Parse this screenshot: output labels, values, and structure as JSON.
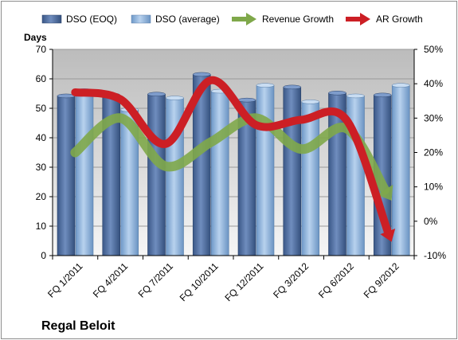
{
  "chart_data": {
    "type": "bar",
    "company": "Regal Beloit",
    "ylabel": "Days",
    "categories": [
      "FQ 1/2011",
      "FQ 4/2011",
      "FQ 7/2011",
      "FQ 10/2011",
      "FQ 12/2011",
      "FQ 3/2012",
      "FQ 6/2012",
      "FQ 9/2012"
    ],
    "ylim": [
      0,
      70
    ],
    "yticks": [
      0,
      10,
      20,
      30,
      40,
      50,
      60,
      70
    ],
    "y2lim": [
      -10,
      50
    ],
    "y2ticks": [
      "-10%",
      "0%",
      "10%",
      "20%",
      "30%",
      "40%",
      "50%"
    ],
    "y2tick_values": [
      -10,
      0,
      10,
      20,
      30,
      40,
      50
    ],
    "grid": true,
    "legend_position": "top",
    "series": [
      {
        "name": "DSO (EOQ)",
        "kind": "bar",
        "axis": "left",
        "color": "#4F6FA0",
        "values": [
          54.2,
          54.5,
          54.8,
          61.5,
          52.8,
          57.2,
          55.2,
          54.5
        ]
      },
      {
        "name": "DSO (average)",
        "kind": "bar",
        "axis": "left",
        "color": "#8FB4DE",
        "values": [
          56.0,
          49.5,
          53.5,
          55.8,
          57.8,
          52.2,
          54.2,
          57.8
        ]
      },
      {
        "name": "Revenue Growth",
        "kind": "arrow-line",
        "axis": "right",
        "color": "#7FA84A",
        "values": [
          20,
          30,
          16,
          23,
          30,
          21,
          27,
          6
        ]
      },
      {
        "name": "AR Growth",
        "kind": "arrow-line",
        "axis": "right",
        "color": "#CC1F25",
        "values": [
          37.5,
          35.5,
          22.5,
          41,
          28,
          29.5,
          29.5,
          -6
        ]
      }
    ],
    "legend": [
      {
        "label": "DSO (EOQ)",
        "icon": "bar-swatch",
        "color": "#4F6FA0"
      },
      {
        "label": "DSO (average)",
        "icon": "bar-swatch",
        "color": "#8FB4DE"
      },
      {
        "label": "Revenue Growth",
        "icon": "arrow-icon",
        "color": "#7FA84A"
      },
      {
        "label": "AR Growth",
        "icon": "arrow-icon",
        "color": "#CC1F25"
      }
    ]
  }
}
